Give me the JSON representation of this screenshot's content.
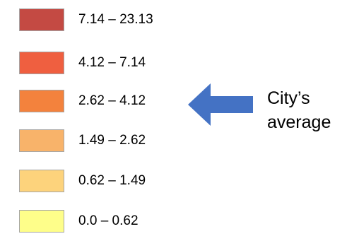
{
  "legend": {
    "items": [
      {
        "range": "7.14 – 23.13",
        "color": "#c44a43"
      },
      {
        "range": "4.12 – 7.14",
        "color": "#ef5f40"
      },
      {
        "range": "2.62 – 4.12",
        "color": "#f3823d"
      },
      {
        "range": "1.49 – 2.62",
        "color": "#f8b36a"
      },
      {
        "range": "0.62 – 1.49",
        "color": "#fdd37c"
      },
      {
        "range": "0.0 – 0.62",
        "color": "#fefe8a"
      }
    ]
  },
  "annotation": {
    "line1": "City’s",
    "line2": "average",
    "arrow_color": "#4472c4",
    "arrow_icon": "arrow-left-icon"
  }
}
